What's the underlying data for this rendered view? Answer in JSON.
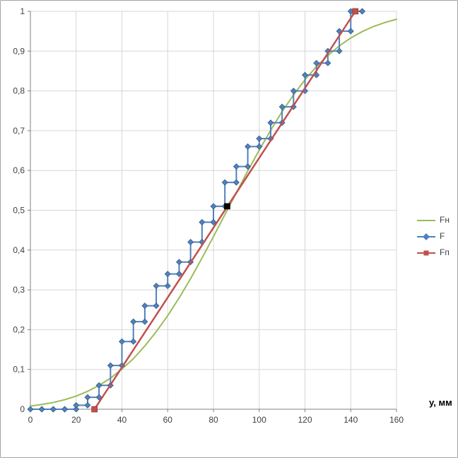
{
  "window": {
    "background": "#ffffff",
    "frame_border_color": "#a3a3a3"
  },
  "chart_data": {
    "type": "line",
    "title": "",
    "xlabel": "у, мм",
    "ylabel": "",
    "xlim": [
      0,
      160
    ],
    "ylim": [
      0,
      1
    ],
    "grid": true,
    "gridline_color": "#d6d6d6",
    "axis_color": "#808080",
    "tick_label_color": "#404040",
    "x_ticks": {
      "values": [
        0,
        20,
        40,
        60,
        80,
        100,
        120,
        140,
        160
      ],
      "labels": [
        "0",
        "20",
        "40",
        "60",
        "80",
        "100",
        "120",
        "140",
        "160"
      ]
    },
    "y_ticks": {
      "values": [
        0,
        0.1,
        0.2,
        0.3,
        0.4,
        0.5,
        0.6,
        0.7,
        0.8,
        0.9,
        1
      ],
      "labels": [
        "0",
        "0,1",
        "0,2",
        "0,3",
        "0,4",
        "0,5",
        "0,6",
        "0,7",
        "0,8",
        "0,9",
        "1"
      ]
    },
    "legend": {
      "position": "right",
      "entries": [
        {
          "label": "Fн",
          "color": "#9BBB59",
          "marker": "none"
        },
        {
          "label": "F",
          "color": "#4F81BD",
          "marker": "diamond"
        },
        {
          "label": "Fп",
          "color": "#C0504D",
          "marker": "square"
        }
      ]
    },
    "series": [
      {
        "name": "Fн",
        "type": "line",
        "color": "#9BBB59",
        "marker": "none",
        "width": 2,
        "x": [
          0,
          5,
          10,
          15,
          20,
          25,
          30,
          35,
          40,
          45,
          50,
          55,
          60,
          65,
          70,
          75,
          80,
          85,
          90,
          95,
          100,
          105,
          110,
          115,
          120,
          125,
          130,
          135,
          140,
          145,
          150,
          155,
          160
        ],
        "y": [
          0.008,
          0.012,
          0.017,
          0.024,
          0.033,
          0.045,
          0.06,
          0.078,
          0.101,
          0.127,
          0.159,
          0.195,
          0.235,
          0.28,
          0.328,
          0.38,
          0.434,
          0.489,
          0.544,
          0.599,
          0.651,
          0.701,
          0.748,
          0.79,
          0.828,
          0.861,
          0.889,
          0.913,
          0.933,
          0.949,
          0.962,
          0.972,
          0.98
        ]
      },
      {
        "name": "F",
        "type": "step",
        "color": "#4F81BD",
        "marker": "diamond",
        "width": 2,
        "x": [
          0,
          5,
          10,
          15,
          20,
          25,
          30,
          35,
          40,
          45,
          50,
          55,
          60,
          65,
          70,
          75,
          80,
          85,
          90,
          95,
          100,
          105,
          110,
          115,
          120,
          125,
          130,
          135,
          140,
          145
        ],
        "y": [
          0,
          0,
          0,
          0,
          0.01,
          0.03,
          0.06,
          0.11,
          0.17,
          0.22,
          0.26,
          0.31,
          0.34,
          0.37,
          0.42,
          0.47,
          0.51,
          0.57,
          0.61,
          0.66,
          0.68,
          0.72,
          0.76,
          0.8,
          0.84,
          0.87,
          0.9,
          0.95,
          1.0,
          1.0
        ]
      },
      {
        "name": "Fп",
        "type": "line",
        "color": "#C0504D",
        "marker": "square",
        "width": 2.5,
        "x": [
          28,
          142
        ],
        "y": [
          0,
          1
        ]
      }
    ],
    "extra_points": [
      {
        "x": 86,
        "y": 0.51,
        "color": "#000000",
        "marker": "square"
      }
    ]
  }
}
